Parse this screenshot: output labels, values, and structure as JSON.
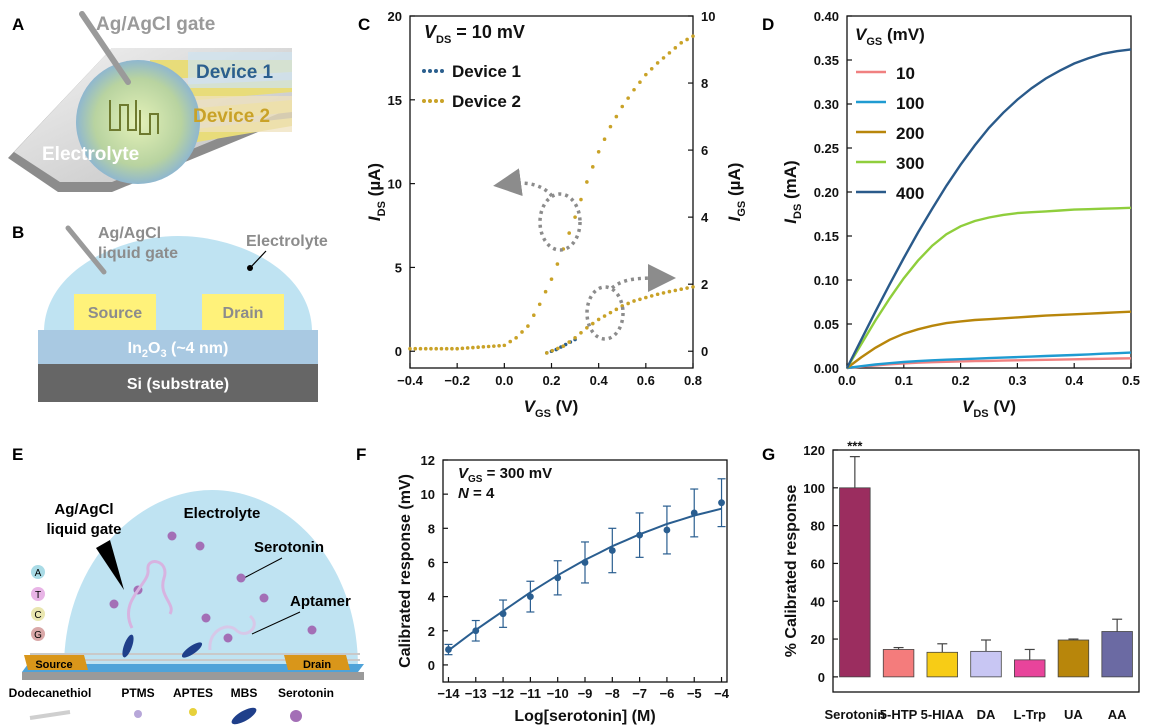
{
  "panels": {
    "A": {
      "letter": "A",
      "labels": {
        "gate": "Ag/AgCl gate",
        "device1": "Device 1",
        "device2": "Device 2",
        "electrolyte": "Electrolyte"
      }
    },
    "B": {
      "letter": "B",
      "labels": {
        "gate_line1": "Ag/AgCl",
        "gate_line2": "liquid gate",
        "electrolyte": "Electrolyte",
        "source": "Source",
        "drain": "Drain",
        "oxide_main": "In",
        "oxide_sub1": "2",
        "oxide_mid": "O",
        "oxide_sub2": "3",
        "oxide_tail": " (~4 nm)",
        "substrate": "Si (substrate)"
      }
    },
    "E": {
      "letter": "E",
      "labels": {
        "gate_line1": "Ag/AgCl",
        "gate_line2": "liquid gate",
        "electrolyte": "Electrolyte",
        "serotonin": "Serotonin",
        "aptamer": "Aptamer",
        "source": "Source",
        "drain": "Drain",
        "bases": [
          "A",
          "T",
          "C",
          "G"
        ],
        "legend": [
          "Dodecanethiol",
          "PTMS",
          "APTES",
          "MBS",
          "Serotonin"
        ]
      }
    }
  },
  "colors": {
    "device1": "#2b5f8e",
    "device2": "#c9a227",
    "fit_F": "#2a5e90",
    "gate_arrows": "#8c8c8c",
    "electrolyte": "#bfe3f2",
    "contact": "#fff27a",
    "oxide": "#a9c9e2",
    "substrate": "#666666"
  },
  "chart_data": [
    {
      "panel": "C",
      "type": "scatter",
      "title": "",
      "annotation": {
        "prefix": "V",
        "sub": "DS",
        "suffix": " = 10 mV"
      },
      "xlabel": {
        "main": "V",
        "sub": "GS",
        "unit": " (V)"
      },
      "ylabel_left": {
        "main": "I",
        "sub": "DS",
        "unit": " (µA)"
      },
      "ylabel_right": {
        "main": "I",
        "sub": "GS",
        "unit": " (µA)"
      },
      "xlim": [
        -0.4,
        0.8
      ],
      "ylim_left": [
        -1,
        20
      ],
      "ylim_right": [
        -0.5,
        10
      ],
      "xticks": [
        "−0.4",
        "−0.2",
        "0.0",
        "0.2",
        "0.4",
        "0.6",
        "0.8"
      ],
      "yticks_left": [
        "0",
        "5",
        "10",
        "15",
        "20"
      ],
      "yticks_right": [
        "0",
        "2",
        "4",
        "6",
        "8",
        "10"
      ],
      "legend": [
        "Device 1",
        "Device 2"
      ],
      "series": [
        {
          "name": "Device 1",
          "axis": "right",
          "color": "#2b5f8e",
          "x": [
            0.18,
            0.22,
            0.26,
            0.3
          ],
          "y": [
            -0.05,
            0.05,
            0.2,
            0.35
          ]
        },
        {
          "name": "Device 2",
          "axis": "left",
          "color": "#c9a227",
          "x": [
            -0.4,
            -0.2,
            0.0,
            0.05,
            0.1,
            0.15,
            0.2,
            0.25,
            0.3,
            0.35,
            0.4,
            0.45,
            0.5,
            0.55,
            0.6,
            0.65,
            0.7,
            0.75,
            0.8
          ],
          "y": [
            0.15,
            0.15,
            0.35,
            0.8,
            1.5,
            2.8,
            4.3,
            6.1,
            8.0,
            10.1,
            11.9,
            13.4,
            14.6,
            15.6,
            16.5,
            17.2,
            17.8,
            18.4,
            18.8
          ]
        },
        {
          "name": "Device 2",
          "axis": "right",
          "color": "#c9a227",
          "x": [
            0.18,
            0.25,
            0.3,
            0.35,
            0.4,
            0.45,
            0.5,
            0.55,
            0.6,
            0.65,
            0.7,
            0.75,
            0.8
          ],
          "y": [
            -0.05,
            0.15,
            0.4,
            0.7,
            0.95,
            1.15,
            1.35,
            1.5,
            1.6,
            1.7,
            1.78,
            1.85,
            1.92
          ]
        }
      ]
    },
    {
      "panel": "D",
      "type": "line",
      "xlabel": {
        "main": "V",
        "sub": "DS",
        "unit": " (V)"
      },
      "ylabel": {
        "main": "I",
        "sub": "DS",
        "unit": " (mA)"
      },
      "legend_title": {
        "main": "V",
        "sub": "GS",
        "unit": " (mV)"
      },
      "xlim": [
        0,
        0.5
      ],
      "ylim": [
        0,
        0.4
      ],
      "xticks": [
        "0.0",
        "0.1",
        "0.2",
        "0.3",
        "0.4",
        "0.5"
      ],
      "yticks": [
        "0.00",
        "0.05",
        "0.10",
        "0.15",
        "0.20",
        "0.25",
        "0.30",
        "0.35",
        "0.40"
      ],
      "x": [
        0.0,
        0.025,
        0.05,
        0.075,
        0.1,
        0.125,
        0.15,
        0.175,
        0.2,
        0.225,
        0.25,
        0.275,
        0.3,
        0.325,
        0.35,
        0.375,
        0.4,
        0.425,
        0.45,
        0.475,
        0.5
      ],
      "series": [
        {
          "name": "10",
          "color": "#f08080",
          "values": [
            0.0,
            0.0015,
            0.003,
            0.0042,
            0.0052,
            0.006,
            0.0066,
            0.0071,
            0.0075,
            0.0078,
            0.0081,
            0.0084,
            0.0087,
            0.009,
            0.0093,
            0.0096,
            0.0099,
            0.0102,
            0.0105,
            0.0108,
            0.011
          ]
        },
        {
          "name": "100",
          "color": "#1f9bd1",
          "values": [
            0.0,
            0.002,
            0.004,
            0.0055,
            0.0068,
            0.0078,
            0.0087,
            0.0094,
            0.01,
            0.0106,
            0.0112,
            0.0118,
            0.0124,
            0.013,
            0.0136,
            0.0142,
            0.0148,
            0.0155,
            0.0162,
            0.0168,
            0.0175
          ]
        },
        {
          "name": "200",
          "color": "#b8860b",
          "values": [
            0.0,
            0.012,
            0.023,
            0.032,
            0.039,
            0.044,
            0.048,
            0.051,
            0.053,
            0.0545,
            0.0555,
            0.0565,
            0.0575,
            0.0585,
            0.0595,
            0.0603,
            0.061,
            0.0617,
            0.0625,
            0.0633,
            0.064
          ]
        },
        {
          "name": "300",
          "color": "#8fce3c",
          "values": [
            0.0,
            0.027,
            0.054,
            0.079,
            0.102,
            0.122,
            0.139,
            0.152,
            0.161,
            0.167,
            0.171,
            0.174,
            0.176,
            0.177,
            0.178,
            0.179,
            0.18,
            0.1805,
            0.181,
            0.1815,
            0.182
          ]
        },
        {
          "name": "400",
          "color": "#2a5a8a",
          "values": [
            0.0,
            0.032,
            0.064,
            0.095,
            0.125,
            0.154,
            0.181,
            0.207,
            0.231,
            0.253,
            0.273,
            0.29,
            0.305,
            0.318,
            0.329,
            0.338,
            0.346,
            0.352,
            0.357,
            0.36,
            0.362
          ]
        }
      ]
    },
    {
      "panel": "F",
      "type": "scatter",
      "annotation": [
        {
          "prefix": "V",
          "sub": "GS",
          "suffix": " = 300 mV"
        },
        {
          "prefix": "N",
          "sub": "",
          "suffix": " = 4"
        }
      ],
      "xlabel": "Log[serotonin] (M)",
      "ylabel": "Calibrated response (mV)",
      "xlim": [
        -14.2,
        -3.8
      ],
      "ylim": [
        -1,
        12
      ],
      "xticks": [
        "−14",
        "−13",
        "−12",
        "−11",
        "−10",
        "−9",
        "−8",
        "−7",
        "−6",
        "−5",
        "−4"
      ],
      "yticks": [
        "0",
        "2",
        "4",
        "6",
        "8",
        "10",
        "12"
      ],
      "x": [
        -14,
        -13,
        -12,
        -11,
        -10,
        -9,
        -8,
        -7,
        -6,
        -5,
        -4
      ],
      "y": [
        0.9,
        2.0,
        3.0,
        4.0,
        5.1,
        6.0,
        6.7,
        7.6,
        7.9,
        8.9,
        9.5
      ],
      "error": [
        0.3,
        0.6,
        0.8,
        0.9,
        1.0,
        1.2,
        1.3,
        1.3,
        1.4,
        1.4,
        1.4
      ],
      "fit": {
        "x": [
          -14,
          -13.5,
          -13,
          -12.5,
          -12,
          -11.5,
          -11,
          -10.5,
          -10,
          -9.5,
          -9,
          -8.5,
          -8,
          -7.5,
          -7,
          -6.5,
          -6,
          -5.5,
          -5,
          -4.5,
          -4
        ],
        "y": [
          0.85,
          1.45,
          2.05,
          2.6,
          3.15,
          3.7,
          4.25,
          4.75,
          5.25,
          5.7,
          6.15,
          6.55,
          6.95,
          7.3,
          7.65,
          7.95,
          8.25,
          8.5,
          8.75,
          8.95,
          9.15
        ]
      }
    },
    {
      "panel": "G",
      "type": "bar",
      "significance": "***",
      "ylabel": "% Calibrated response",
      "ylim": [
        0,
        120
      ],
      "yticks": [
        "0",
        "20",
        "40",
        "60",
        "80",
        "100",
        "120"
      ],
      "categories": [
        "Serotonin",
        "5-HTP",
        "5-HIAA",
        "DA",
        "L-Trp",
        "UA",
        "AA"
      ],
      "values": [
        100,
        14.5,
        13,
        13.5,
        9,
        19.5,
        24
      ],
      "error": [
        16.5,
        1,
        4.5,
        6,
        5.5,
        0.5,
        6.5
      ],
      "colors": [
        "#9b2d5f",
        "#f47c7c",
        "#f7cc16",
        "#c8c6f3",
        "#e8449b",
        "#b8860b",
        "#6b6aa3"
      ]
    }
  ]
}
